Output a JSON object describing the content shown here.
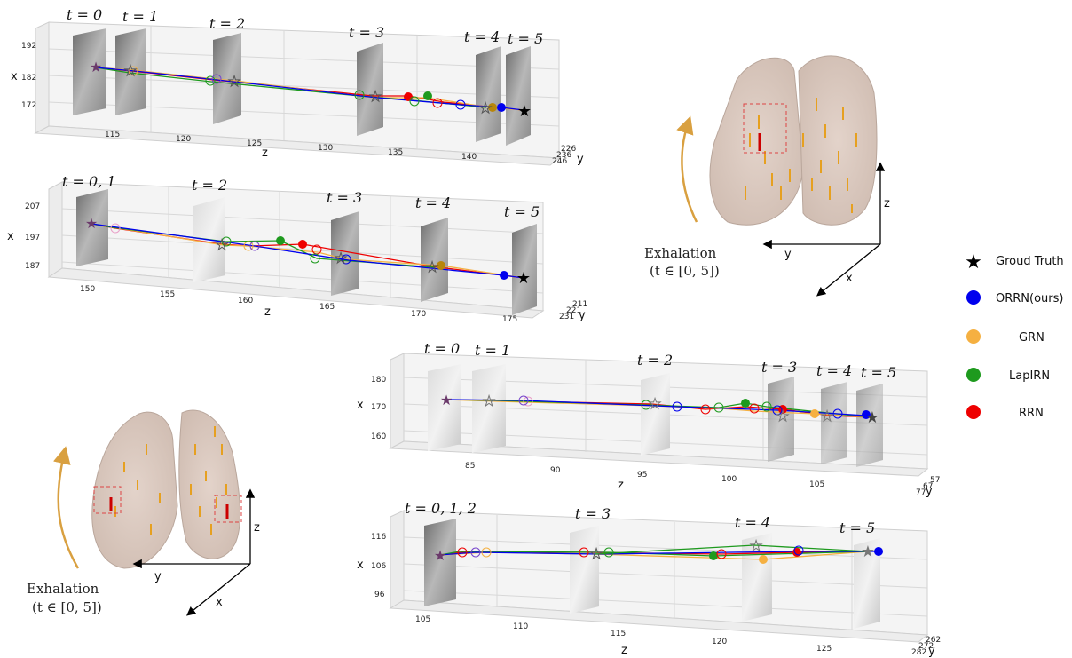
{
  "panels": [
    {
      "id": "p1",
      "x_ticks": [
        "192",
        "182",
        "172"
      ],
      "z_ticks": [
        "115",
        "120",
        "125",
        "130",
        "135",
        "140"
      ],
      "y_ticks": [
        "226",
        "236",
        "246"
      ],
      "time_labels": [
        "t = 0",
        "t = 1",
        "t = 2",
        "t = 3",
        "t = 4",
        "t = 5"
      ],
      "x_label": "x",
      "z_label": "z",
      "y_label": "y"
    },
    {
      "id": "p2",
      "x_ticks": [
        "207",
        "197",
        "187"
      ],
      "z_ticks": [
        "150",
        "155",
        "160",
        "165",
        "170",
        "175"
      ],
      "y_ticks": [
        "211",
        "221",
        "231"
      ],
      "time_labels": [
        "t = 0, 1",
        "t = 2",
        "t = 3",
        "t = 4",
        "t = 5"
      ],
      "x_label": "x",
      "z_label": "z",
      "y_label": "y"
    },
    {
      "id": "p3",
      "x_ticks": [
        "180",
        "170",
        "160"
      ],
      "z_ticks": [
        "85",
        "90",
        "95",
        "100",
        "105"
      ],
      "y_ticks": [
        "57",
        "67",
        "77"
      ],
      "time_labels": [
        "t = 0",
        "t = 1",
        "t = 2",
        "t = 3",
        "t = 4",
        "t = 5"
      ],
      "x_label": "x",
      "z_label": "z",
      "y_label": "y"
    },
    {
      "id": "p4",
      "x_ticks": [
        "116",
        "106",
        "96"
      ],
      "z_ticks": [
        "105",
        "110",
        "115",
        "120",
        "125"
      ],
      "y_ticks": [
        "262",
        "272",
        "282"
      ],
      "time_labels": [
        "t = 0, 1, 2",
        "t = 3",
        "t = 4",
        "t = 5"
      ],
      "x_label": "x",
      "z_label": "z",
      "y_label": "y"
    }
  ],
  "lungs": [
    {
      "id": "lung-right",
      "exhalation": "Exhalation",
      "range": "(t ∈ [0, 5])",
      "axis_z": "z",
      "axis_y": "y",
      "axis_x": "x"
    },
    {
      "id": "lung-left",
      "exhalation": "Exhalation",
      "range": "(t ∈ [0, 5])",
      "axis_z": "z",
      "axis_y": "y",
      "axis_x": "x"
    }
  ],
  "legend": [
    {
      "label": "Groud Truth",
      "color": "#000000",
      "marker": "star"
    },
    {
      "label": "ORRN(ours)",
      "color": "#0000ee",
      "marker": "circle"
    },
    {
      "label": "GRN",
      "color": "#f5b041",
      "marker": "circle"
    },
    {
      "label": "LapIRN",
      "color": "#1e9a1e",
      "marker": "circle"
    },
    {
      "label": "RRN",
      "color": "#ee0000",
      "marker": "circle"
    }
  ],
  "colors": {
    "gt": "#000000",
    "orrn": "#0000ee",
    "grn": "#f5b041",
    "lapirn": "#1e9a1e",
    "rrn": "#ee0000",
    "arrow": "#d9a040",
    "lung": "#d8c6bc"
  }
}
